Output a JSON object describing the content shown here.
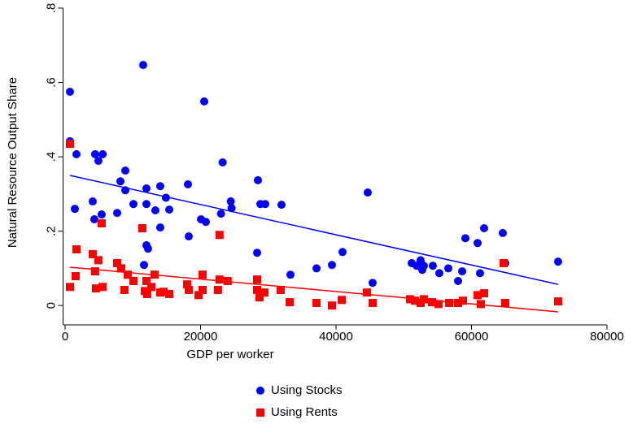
{
  "chart_data": {
    "type": "scatter",
    "xlabel": "GDP per worker",
    "ylabel": "Natural Resource Output Share",
    "xlim": [
      -300,
      80000
    ],
    "xticks": [
      0,
      20000,
      40000,
      60000,
      80000
    ],
    "ylim": [
      -0.052,
      0.8
    ],
    "yticks": [
      {
        "value": 0,
        "label": "0"
      },
      {
        "value": 0.2,
        "label": ".2"
      },
      {
        "value": 0.4,
        "label": ".4"
      },
      {
        "value": 0.6,
        "label": ".6"
      },
      {
        "value": 0.8,
        "label": ".8"
      }
    ],
    "series": [
      {
        "name": "Using Stocks",
        "color": "#0000ff",
        "marker": "circle",
        "x": [
          720,
          720,
          1680,
          1440,
          4080,
          4440,
          5550,
          4920,
          4320,
          5400,
          7690,
          8170,
          8890,
          8890,
          10090,
          11530,
          12010,
          12010,
          12010,
          12250,
          11650,
          13330,
          14050,
          14050,
          14890,
          15380,
          18140,
          18260,
          20060,
          20540,
          20780,
          23020,
          23260,
          24460,
          24580,
          28470,
          28350,
          28830,
          29550,
          31950,
          33270,
          37120,
          39400,
          40960,
          44680,
          45400,
          51170,
          51890,
          52490,
          52730,
          52970,
          54290,
          55250,
          56580,
          58020,
          58620,
          59100,
          60900,
          61860,
          61260,
          64620,
          64980,
          72790
        ],
        "values": [
          0.575,
          0.442,
          0.407,
          0.26,
          0.28,
          0.407,
          0.407,
          0.389,
          0.232,
          0.245,
          0.249,
          0.334,
          0.363,
          0.31,
          0.273,
          0.647,
          0.315,
          0.273,
          0.162,
          0.153,
          0.109,
          0.256,
          0.321,
          0.21,
          0.29,
          0.258,
          0.326,
          0.186,
          0.232,
          0.549,
          0.225,
          0.247,
          0.385,
          0.28,
          0.262,
          0.337,
          0.142,
          0.273,
          0.273,
          0.271,
          0.083,
          0.1,
          0.109,
          0.144,
          0.304,
          0.061,
          0.114,
          0.107,
          0.122,
          0.096,
          0.107,
          0.107,
          0.087,
          0.1,
          0.066,
          0.092,
          0.181,
          0.168,
          0.208,
          0.087,
          0.195,
          0.114,
          0.118
        ]
      },
      {
        "name": "Using Rents",
        "color": "#ff0000",
        "marker": "square",
        "x": [
          720,
          720,
          1560,
          1680,
          4080,
          4440,
          4560,
          4920,
          5400,
          5530,
          7690,
          8290,
          8770,
          9250,
          10090,
          11410,
          11770,
          12010,
          12130,
          12730,
          13210,
          14050,
          14530,
          15380,
          18020,
          18260,
          19700,
          20300,
          20300,
          22560,
          22800,
          22800,
          24000,
          28350,
          28350,
          28710,
          29430,
          31830,
          33150,
          37120,
          39400,
          40840,
          44560,
          45400,
          50930,
          51650,
          52490,
          52970,
          54170,
          55130,
          56700,
          58020,
          58740,
          60900,
          61380,
          61860,
          64740,
          64980,
          72790
        ],
        "values": [
          0.435,
          0.05,
          0.079,
          0.151,
          0.138,
          0.092,
          0.046,
          0.122,
          0.221,
          0.05,
          0.114,
          0.1,
          0.042,
          0.083,
          0.066,
          0.208,
          0.039,
          0.066,
          0.031,
          0.05,
          0.083,
          0.035,
          0.037,
          0.031,
          0.057,
          0.042,
          0.028,
          0.083,
          0.042,
          0.042,
          0.19,
          0.07,
          0.066,
          0.07,
          0.042,
          0.022,
          0.035,
          0.042,
          0.009,
          0.007,
          0,
          0.015,
          0.035,
          0.007,
          0.017,
          0.013,
          0.007,
          0.017,
          0.009,
          0.004,
          0.007,
          0.007,
          0.013,
          0.028,
          0.004,
          0.033,
          0.114,
          0.007,
          0.011
        ]
      }
    ],
    "lines": [
      {
        "color": "#0000ff",
        "x": [
          720,
          72790
        ],
        "values": [
          0.35,
          0.057
        ]
      },
      {
        "color": "#ff0000",
        "x": [
          720,
          72790
        ],
        "values": [
          0.103,
          -0.017
        ]
      }
    ]
  }
}
